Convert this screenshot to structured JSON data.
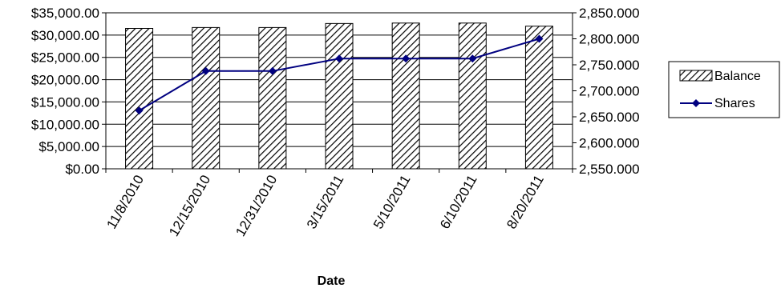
{
  "chart_data": {
    "type": "bar",
    "categories": [
      "11/8/2010",
      "12/15/2010",
      "12/31/2010",
      "3/15/2011",
      "5/10/2011",
      "6/10/2011",
      "8/20/2011"
    ],
    "series": [
      {
        "name": "Balance",
        "type": "bar",
        "axis": "left",
        "values": [
          31500,
          31700,
          31700,
          32600,
          32700,
          32700,
          32000
        ],
        "color": "#000000",
        "pattern": "diagonal-hatch"
      },
      {
        "name": "Shares",
        "type": "line",
        "axis": "right",
        "values": [
          2662,
          2738,
          2738,
          2762,
          2762,
          2762,
          2800
        ],
        "color": "#000080",
        "marker": "diamond"
      }
    ],
    "xlabel": "Date",
    "ylabel": "",
    "y2label": "",
    "ylim": [
      0,
      35000
    ],
    "y2lim": [
      2550,
      2850
    ],
    "yticks": [
      "$0.00",
      "$5,000.00",
      "$10,000.00",
      "$15,000.00",
      "$20,000.00",
      "$25,000.00",
      "$30,000.00",
      "$35,000.00"
    ],
    "y2ticks": [
      "2,550.000",
      "2,600.000",
      "2,650.000",
      "2,700.000",
      "2,750.000",
      "2,800.000",
      "2,850.000"
    ],
    "grid": "horizontal",
    "legend": "right"
  }
}
